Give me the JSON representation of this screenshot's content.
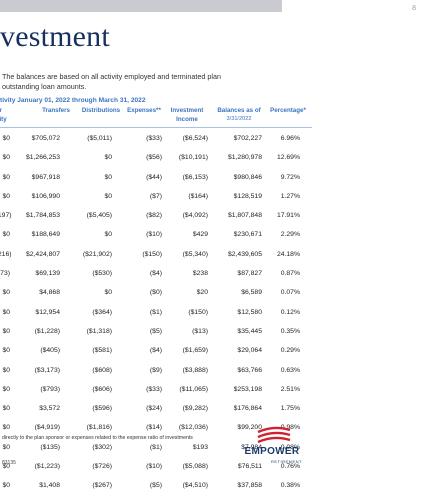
{
  "page_number": "8",
  "title": "vestment",
  "description_lines": [
    "The balances are based on all activity employed and terminated plan",
    "outstanding loan amounts."
  ],
  "section_title": "tivity January 01, 2022 through March 31, 2022",
  "headers": {
    "left_a": "er",
    "left_b": "vity",
    "transfers": "Transfers",
    "distributions": "Distributions",
    "expenses": "Expenses**",
    "investment": "Investment",
    "income": "Income",
    "balances": "Balances as of",
    "balances_date": "3/31/2022",
    "percentage": "Percentage*"
  },
  "rows": [
    [
      "$0",
      "$705,072",
      "($5,011)",
      "($33)",
      "($6,524)",
      "$702,227",
      "6.96%"
    ],
    [
      "$0",
      "$1,266,253",
      "$0",
      "($56)",
      "($10,191)",
      "$1,280,978",
      "12.69%"
    ],
    [
      "$0",
      "$967,918",
      "$0",
      "($44)",
      "($6,153)",
      "$980,846",
      "9.72%"
    ],
    [
      "$0",
      "$106,990",
      "$0",
      "($7)",
      "($164)",
      "$128,519",
      "1.27%"
    ],
    [
      ",197)",
      "$1,784,853",
      "($5,405)",
      "($82)",
      "($4,092)",
      "$1,807,848",
      "17.91%"
    ],
    [
      "$0",
      "$188,649",
      "$0",
      "($10)",
      "$429",
      "$230,671",
      "2.29%"
    ],
    [
      ",216)",
      "$2,424,807",
      "($21,902)",
      "($150)",
      "($5,340)",
      "$2,439,605",
      "24.18%"
    ],
    [
      "273)",
      "$69,139",
      "($530)",
      "($4)",
      "$238",
      "$87,827",
      "0.87%"
    ],
    [
      "$0",
      "$4,868",
      "$0",
      "($0)",
      "$20",
      "$6,589",
      "0.07%"
    ],
    [
      "$0",
      "$12,954",
      "($364)",
      "($1)",
      "($150)",
      "$12,580",
      "0.12%"
    ],
    [
      "$0",
      "($1,228)",
      "($1,318)",
      "($5)",
      "($13)",
      "$35,445",
      "0.35%"
    ],
    [
      "$0",
      "($405)",
      "($581)",
      "($4)",
      "($1,659)",
      "$29,064",
      "0.29%"
    ],
    [
      "$0",
      "($3,173)",
      "($608)",
      "($9)",
      "($3,888)",
      "$63,766",
      "0.63%"
    ],
    [
      "$0",
      "($793)",
      "($606)",
      "($33)",
      "($11,065)",
      "$253,198",
      "2.51%"
    ],
    [
      "$0",
      "$3,572",
      "($596)",
      "($24)",
      "($9,282)",
      "$176,864",
      "1.75%"
    ],
    [
      "$0",
      "($4,919)",
      "($1,816)",
      "($14)",
      "($12,036)",
      "$99,200",
      "0.98%"
    ],
    [
      "$0",
      "($135)",
      "($302)",
      "($1)",
      "$193",
      "$7,984",
      "0.08%"
    ],
    [
      "$0",
      "($1,223)",
      "($726)",
      "($10)",
      "($5,088)",
      "$76,511",
      "0.76%"
    ],
    [
      "$0",
      "$1,408",
      "($267)",
      "($5)",
      "($4,510)",
      "$37,858",
      "0.38%"
    ]
  ],
  "footnote": "directly to the plan sponsor or expenses related to the expense ratio of investments",
  "doc_id": "83135",
  "logo": {
    "name": "EMPOWER",
    "sub": "RETIREMENT",
    "color": "#1b3a6b",
    "accent": "#d2202f"
  },
  "colors": {
    "title": "#18305e",
    "header": "#3b74c0"
  }
}
